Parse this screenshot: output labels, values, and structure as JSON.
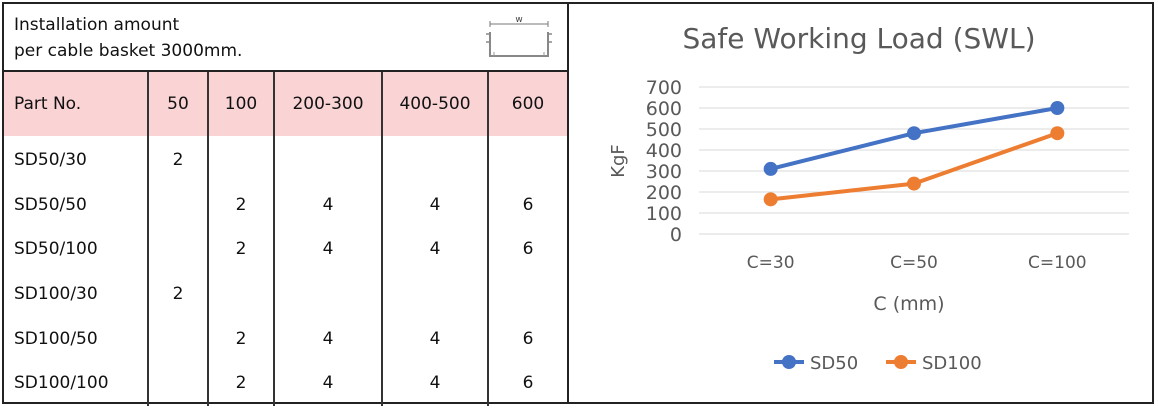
{
  "note": {
    "line1": "Installation amount",
    "line2": "per cable basket 3000mm.",
    "icon_label": "w"
  },
  "table": {
    "headers": [
      "Part No.",
      "50",
      "100",
      "200-300",
      "400-500",
      "600"
    ],
    "rows": [
      [
        "SD50/30",
        "2",
        "",
        "",
        "",
        ""
      ],
      [
        "SD50/50",
        "",
        "2",
        "4",
        "4",
        "6"
      ],
      [
        "SD50/100",
        "",
        "2",
        "4",
        "4",
        "6"
      ],
      [
        "SD100/30",
        "2",
        "",
        "",
        "",
        ""
      ],
      [
        "SD100/50",
        "",
        "2",
        "4",
        "4",
        "6"
      ],
      [
        "SD100/100",
        "",
        "2",
        "4",
        "4",
        "6"
      ]
    ],
    "header_color": "#fad3d5"
  },
  "chart_data": {
    "type": "line",
    "title": "Safe Working Load (SWL)",
    "xlabel": "C (mm)",
    "ylabel": "KgF",
    "categories": [
      "C=30",
      "C=50",
      "C=100"
    ],
    "yticks": [
      0,
      100,
      200,
      300,
      400,
      500,
      600,
      700
    ],
    "ylim": [
      0,
      700
    ],
    "grid": true,
    "legend_position": "bottom",
    "series": [
      {
        "name": "SD50",
        "color": "#4472c4",
        "values": [
          310,
          480,
          600
        ]
      },
      {
        "name": "SD100",
        "color": "#ed7d31",
        "values": [
          165,
          240,
          480
        ]
      }
    ]
  }
}
